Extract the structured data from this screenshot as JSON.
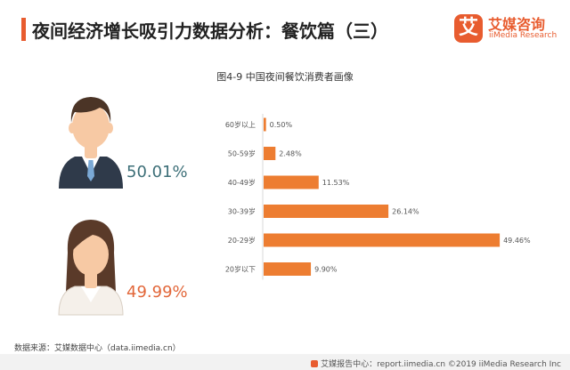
{
  "header": {
    "title": "夜间经济增长吸引力数据分析：餐饮篇（三）",
    "logo_mark": "艾",
    "logo_cn": "艾媒咨询",
    "logo_en": "iiMedia Research"
  },
  "colors": {
    "accent": "#e85c2f",
    "bar": "#ed7d31",
    "male_pct": "#3d6f78",
    "female_pct": "#e2673a",
    "skin": "#f7c9a4",
    "male_hair": "#4b3426",
    "female_hair": "#5a3a29",
    "suit": "#2f3a4a",
    "shirt": "#ffffff",
    "tie": "#7ba9d6",
    "female_top": "#f5f0ea"
  },
  "personas": {
    "male": {
      "percent": "50.01%"
    },
    "female": {
      "percent": "49.99%"
    }
  },
  "chart_data": {
    "type": "bar",
    "orientation": "horizontal",
    "title": "图4-9 中国夜间餐饮消费者画像",
    "categories": [
      "60岁以上",
      "50-59岁",
      "40-49岁",
      "30-39岁",
      "20-29岁",
      "20岁以下"
    ],
    "values": [
      0.5,
      2.48,
      11.53,
      26.14,
      49.46,
      9.9
    ],
    "data_labels": [
      "0.50%",
      "2.48%",
      "11.53%",
      "26.14%",
      "49.46%",
      "9.90%"
    ],
    "xlim": [
      0,
      50
    ],
    "grid": false
  },
  "source": "数据来源：艾媒数据中心（data.iimedia.cn）",
  "footer": "艾媒报告中心：report.iimedia.cn  ©2019  iiMedia Research Inc"
}
